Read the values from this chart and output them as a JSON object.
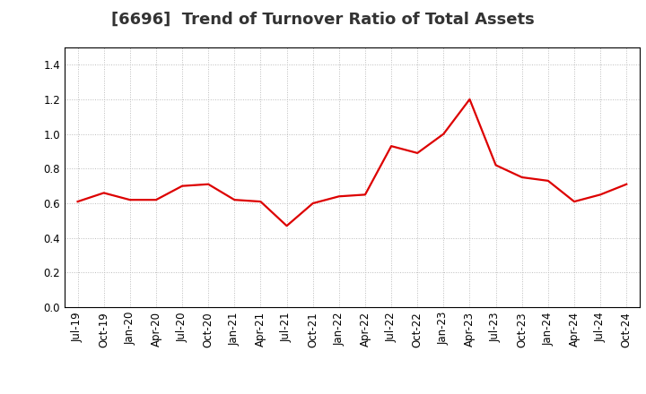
{
  "title": "[6696]  Trend of Turnover Ratio of Total Assets",
  "x_labels": [
    "Jul-19",
    "Oct-19",
    "Jan-20",
    "Apr-20",
    "Jul-20",
    "Oct-20",
    "Jan-21",
    "Apr-21",
    "Jul-21",
    "Oct-21",
    "Jan-22",
    "Apr-22",
    "Jul-22",
    "Oct-22",
    "Jan-23",
    "Apr-23",
    "Jul-23",
    "Oct-23",
    "Jan-24",
    "Apr-24",
    "Jul-24",
    "Oct-24"
  ],
  "y_values": [
    0.61,
    0.66,
    0.62,
    0.62,
    0.7,
    0.71,
    0.62,
    0.61,
    0.47,
    0.6,
    0.64,
    0.65,
    0.93,
    0.89,
    1.0,
    1.2,
    0.82,
    0.75,
    0.73,
    0.61,
    0.65,
    0.71
  ],
  "line_color": "#dd0000",
  "line_width": 1.6,
  "ylim": [
    0.0,
    1.5
  ],
  "yticks": [
    0.0,
    0.2,
    0.4,
    0.6,
    0.8,
    1.0,
    1.2,
    1.4
  ],
  "grid_color": "#bbbbbb",
  "background_color": "#ffffff",
  "title_fontsize": 13,
  "tick_fontsize": 8.5
}
